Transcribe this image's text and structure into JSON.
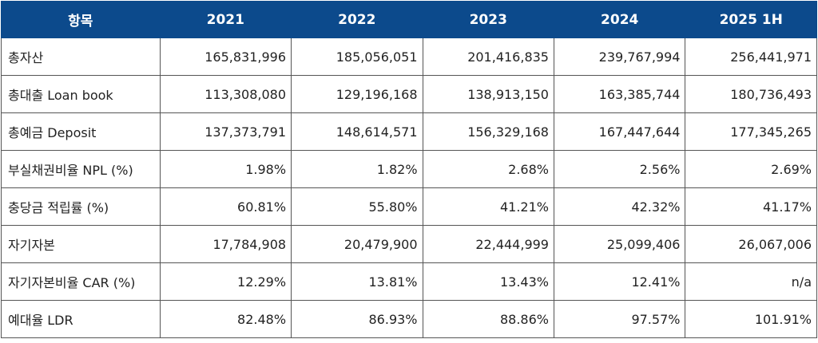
{
  "colors": {
    "header_bg": "#0c4a8c",
    "header_text": "#ffffff",
    "border": "#555555"
  },
  "chart_data": {
    "type": "table",
    "columns": [
      "항목",
      "2021",
      "2022",
      "2023",
      "2024",
      "2025 1H"
    ],
    "rows": [
      [
        "총자산",
        "165,831,996",
        "185,056,051",
        "201,416,835",
        "239,767,994",
        "256,441,971"
      ],
      [
        "총대출 Loan book",
        "113,308,080",
        "129,196,168",
        "138,913,150",
        "163,385,744",
        "180,736,493"
      ],
      [
        "총예금 Deposit",
        "137,373,791",
        "148,614,571",
        "156,329,168",
        "167,447,644",
        "177,345,265"
      ],
      [
        "부실채권비율 NPL (%)",
        "1.98%",
        "1.82%",
        "2.68%",
        "2.56%",
        "2.69%"
      ],
      [
        "충당금 적립률 (%)",
        "60.81%",
        "55.80%",
        "41.21%",
        "42.32%",
        "41.17%"
      ],
      [
        "자기자본",
        "17,784,908",
        "20,479,900",
        "22,444,999",
        "25,099,406",
        "26,067,006"
      ],
      [
        "자기자본비율 CAR (%)",
        "12.29%",
        "13.81%",
        "13.43%",
        "12.41%",
        "n/a"
      ],
      [
        "예대율 LDR",
        "82.48%",
        "86.93%",
        "88.86%",
        "97.57%",
        "101.91%"
      ]
    ]
  }
}
